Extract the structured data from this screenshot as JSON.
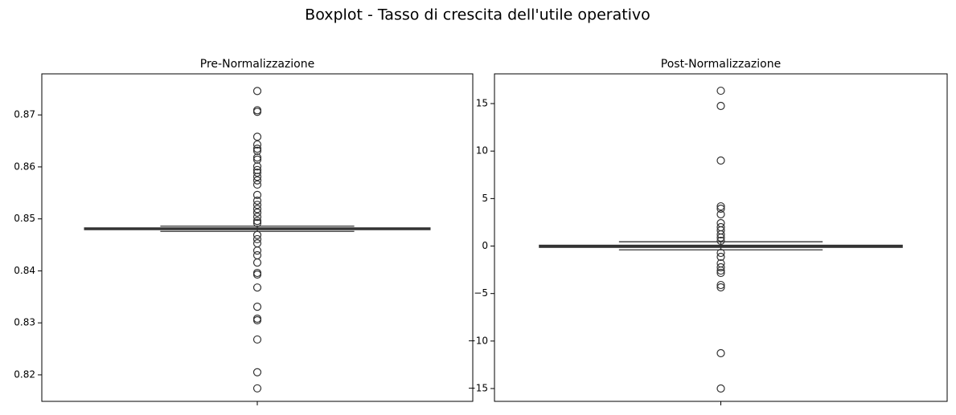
{
  "suptitle": "Boxplot - Tasso di crescita dell'utile operativo",
  "chart_data": [
    {
      "type": "box",
      "title": "Pre-Normalizzazione",
      "color": "#333333",
      "ylim": [
        0.8149,
        0.8779
      ],
      "yticks": [
        0.82,
        0.83,
        0.84,
        0.85,
        0.86,
        0.87
      ],
      "box": {
        "whislo": 0.8476,
        "q1": 0.848,
        "med": 0.8481,
        "q3": 0.8482,
        "whishi": 0.8486
      },
      "outliers": [
        0.8746,
        0.8709,
        0.8706,
        0.8658,
        0.8643,
        0.8635,
        0.8631,
        0.8618,
        0.8614,
        0.8601,
        0.8594,
        0.8589,
        0.8581,
        0.8574,
        0.8566,
        0.8546,
        0.8535,
        0.8527,
        0.8519,
        0.8512,
        0.8504,
        0.8496,
        0.8492,
        0.8469,
        0.8461,
        0.8453,
        0.8439,
        0.843,
        0.8416,
        0.8396,
        0.8393,
        0.8368,
        0.8331,
        0.8308,
        0.8305,
        0.8268,
        0.8205,
        0.8174
      ]
    },
    {
      "type": "box",
      "title": "Post-Normalizzazione",
      "color": "#333333",
      "ylim": [
        -16.35,
        18.13
      ],
      "yticks": [
        {
          "value": -15,
          "label": "−15"
        },
        {
          "value": -10,
          "label": "−10"
        },
        {
          "value": -5,
          "label": "−5"
        },
        0,
        5,
        10,
        15
      ],
      "box": {
        "whislo": -0.4,
        "q1": -0.1,
        "med": -0.05,
        "q3": 0.05,
        "whishi": 0.45
      },
      "outliers": [
        16.35,
        14.75,
        9.0,
        4.18,
        3.93,
        3.34,
        2.41,
        1.99,
        1.65,
        1.23,
        0.89,
        0.55,
        -0.72,
        -1.14,
        -1.82,
        -2.24,
        -2.58,
        -2.83,
        -4.1,
        -4.35,
        -11.28,
        -15.0
      ]
    }
  ]
}
